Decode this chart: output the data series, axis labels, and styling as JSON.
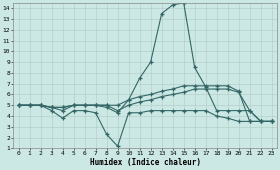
{
  "xlabel": "Humidex (Indice chaleur)",
  "bg_color": "#cce8e4",
  "grid_color": "#b0c8c4",
  "line_color": "#336666",
  "xlim": [
    -0.5,
    23.5
  ],
  "ylim": [
    1,
    14.5
  ],
  "xticks": [
    0,
    1,
    2,
    3,
    4,
    5,
    6,
    7,
    8,
    9,
    10,
    11,
    12,
    13,
    14,
    15,
    16,
    17,
    18,
    19,
    20,
    21,
    22,
    23
  ],
  "yticks": [
    1,
    2,
    3,
    4,
    5,
    6,
    7,
    8,
    9,
    10,
    11,
    12,
    13,
    14
  ],
  "line_peak_x": [
    0,
    1,
    2,
    3,
    4,
    5,
    6,
    7,
    8,
    9,
    10,
    11,
    12,
    13,
    14,
    15,
    16,
    17,
    18,
    19,
    20,
    21,
    22,
    23
  ],
  "line_peak_y": [
    5.0,
    5.0,
    5.0,
    4.8,
    4.5,
    5.0,
    5.0,
    5.0,
    4.8,
    4.3,
    5.5,
    7.5,
    9.0,
    13.5,
    14.3,
    14.5,
    8.5,
    6.7,
    4.5,
    4.5,
    4.5,
    4.5,
    3.5,
    3.5
  ],
  "line_upper_x": [
    0,
    1,
    2,
    3,
    4,
    5,
    6,
    7,
    8,
    9,
    10,
    11,
    12,
    13,
    14,
    15,
    16,
    17,
    18,
    19,
    20,
    21,
    22,
    23
  ],
  "line_upper_y": [
    5.0,
    5.0,
    5.0,
    4.8,
    4.8,
    5.0,
    5.0,
    5.0,
    5.0,
    5.0,
    5.5,
    5.8,
    6.0,
    6.3,
    6.5,
    6.8,
    6.8,
    6.8,
    6.8,
    6.8,
    6.3,
    3.5,
    3.5,
    3.5
  ],
  "line_mid_x": [
    0,
    1,
    2,
    3,
    4,
    5,
    6,
    7,
    8,
    9,
    10,
    11,
    12,
    13,
    14,
    15,
    16,
    17,
    18,
    19,
    20,
    21,
    22,
    23
  ],
  "line_mid_y": [
    5.0,
    5.0,
    5.0,
    4.8,
    4.8,
    5.0,
    5.0,
    5.0,
    5.0,
    4.5,
    5.0,
    5.3,
    5.5,
    5.8,
    6.0,
    6.2,
    6.5,
    6.5,
    6.5,
    6.5,
    6.2,
    4.5,
    3.5,
    3.5
  ],
  "line_low_x": [
    0,
    1,
    2,
    3,
    4,
    5,
    6,
    7,
    8,
    9,
    10,
    11,
    12,
    13,
    14,
    15,
    16,
    17,
    18,
    19,
    20,
    21,
    22,
    23
  ],
  "line_low_y": [
    5.0,
    5.0,
    5.0,
    4.5,
    3.8,
    4.5,
    4.5,
    4.3,
    2.3,
    1.2,
    4.3,
    4.3,
    4.5,
    4.5,
    4.5,
    4.5,
    4.5,
    4.5,
    4.0,
    3.8,
    3.5,
    3.5,
    3.5,
    3.5
  ]
}
